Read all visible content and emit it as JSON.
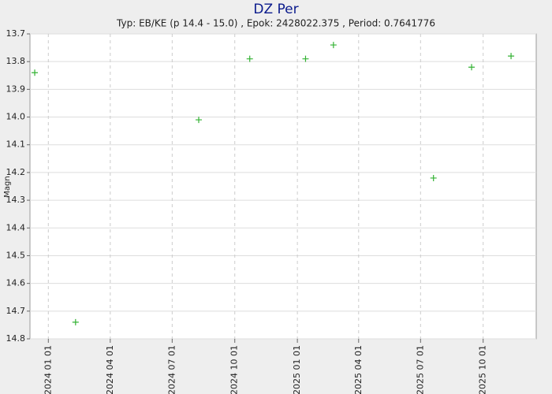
{
  "chart_data": {
    "type": "scatter",
    "title": "DZ Per",
    "subtitle": "Typ: EB/KE (p 14.4 - 15.0) , Epok: 2428022.375 , Period: 0.7641776",
    "y_label": "Magn",
    "y_inverted": true,
    "grid": true,
    "series": [
      {
        "color": "#33b233",
        "x": [
          "2023 12 12",
          "2024 02 10",
          "2024 08 09",
          "2024 10 23",
          "2025 01 13",
          "2025 02 23",
          "2025 07 20",
          "2025 09 14",
          "2025 11 11"
        ],
        "values": [
          13.84,
          14.74,
          14.01,
          13.79,
          13.79,
          13.74,
          14.22,
          13.82,
          13.78
        ]
      }
    ],
    "xlim": [
      "2023 12 05",
      "2025 12 18"
    ],
    "xticks": [
      "2024 01 01",
      "2024 04 01",
      "2024 07 01",
      "2024 10 01",
      "2025 01 01",
      "2025 04 01",
      "2025 07 01",
      "2025 10 01"
    ],
    "ylim": [
      13.7,
      14.8
    ],
    "yticks": [
      13.7,
      13.8,
      13.9,
      {
        "value": 14,
        "label": "14.0"
      },
      14.1,
      14.2,
      14.3,
      14.4,
      14.5,
      14.6,
      14.7,
      14.8
    ]
  }
}
